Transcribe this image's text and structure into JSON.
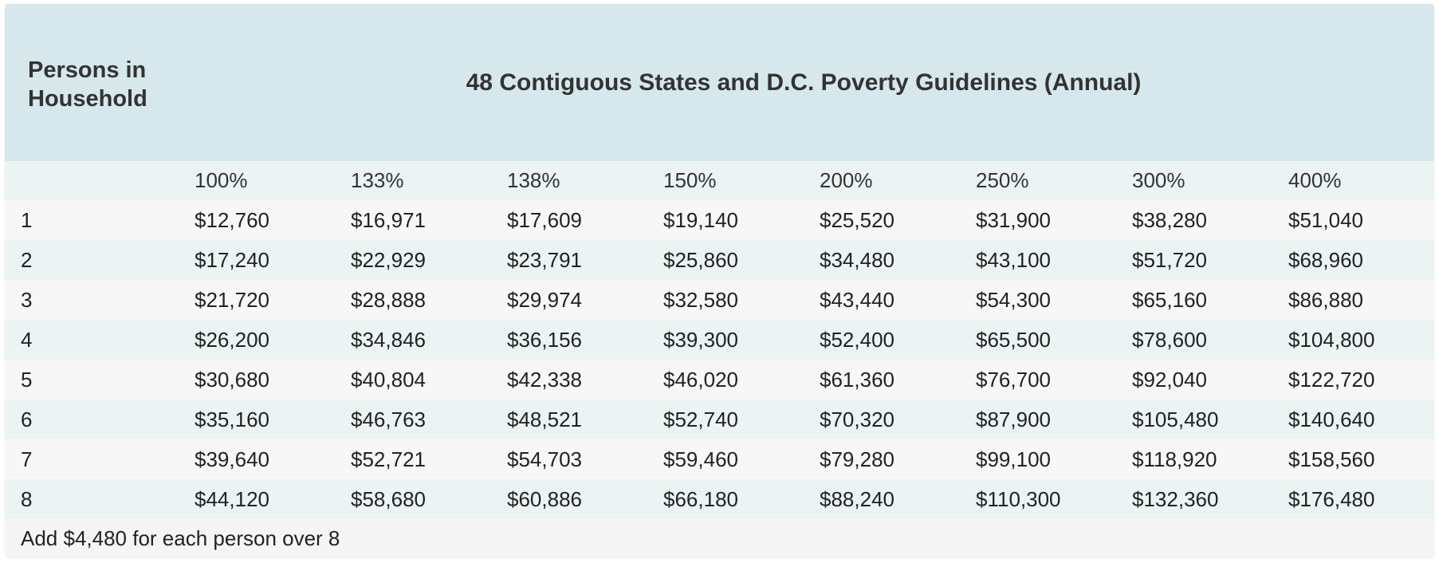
{
  "table": {
    "header": {
      "persons_label": "Persons in Household",
      "title": "48 Contiguous States and D.C. Poverty Guidelines (Annual)"
    },
    "percentages": [
      "100%",
      "133%",
      "138%",
      "150%",
      "200%",
      "250%",
      "300%",
      "400%"
    ],
    "rows": [
      {
        "persons": "1",
        "values": [
          "$12,760",
          "$16,971",
          "$17,609",
          "$19,140",
          "$25,520",
          "$31,900",
          "$38,280",
          "$51,040"
        ]
      },
      {
        "persons": "2",
        "values": [
          "$17,240",
          "$22,929",
          "$23,791",
          "$25,860",
          "$34,480",
          "$43,100",
          "$51,720",
          "$68,960"
        ]
      },
      {
        "persons": "3",
        "values": [
          "$21,720",
          "$28,888",
          "$29,974",
          "$32,580",
          "$43,440",
          "$54,300",
          "$65,160",
          "$86,880"
        ]
      },
      {
        "persons": "4",
        "values": [
          "$26,200",
          "$34,846",
          "$36,156",
          "$39,300",
          "$52,400",
          "$65,500",
          "$78,600",
          "$104,800"
        ]
      },
      {
        "persons": "5",
        "values": [
          "$30,680",
          "$40,804",
          "$42,338",
          "$46,020",
          "$61,360",
          "$76,700",
          "$92,040",
          "$122,720"
        ]
      },
      {
        "persons": "6",
        "values": [
          "$35,160",
          "$46,763",
          "$48,521",
          "$52,740",
          "$70,320",
          "$87,900",
          "$105,480",
          "$140,640"
        ]
      },
      {
        "persons": "7",
        "values": [
          "$39,640",
          "$52,721",
          "$54,703",
          "$59,460",
          "$79,280",
          "$99,100",
          "$118,920",
          "$158,560"
        ]
      },
      {
        "persons": "8",
        "values": [
          "$44,120",
          "$58,680",
          "$60,886",
          "$66,180",
          "$88,240",
          "$110,300",
          "$132,360",
          "$176,480"
        ]
      }
    ],
    "footer_note": "Add $4,480 for each person over 8"
  },
  "colors": {
    "header_bg": "#d6e8ec",
    "row_alt_bg": "#ebf4f3",
    "row_bg": "#f7f7f7"
  }
}
